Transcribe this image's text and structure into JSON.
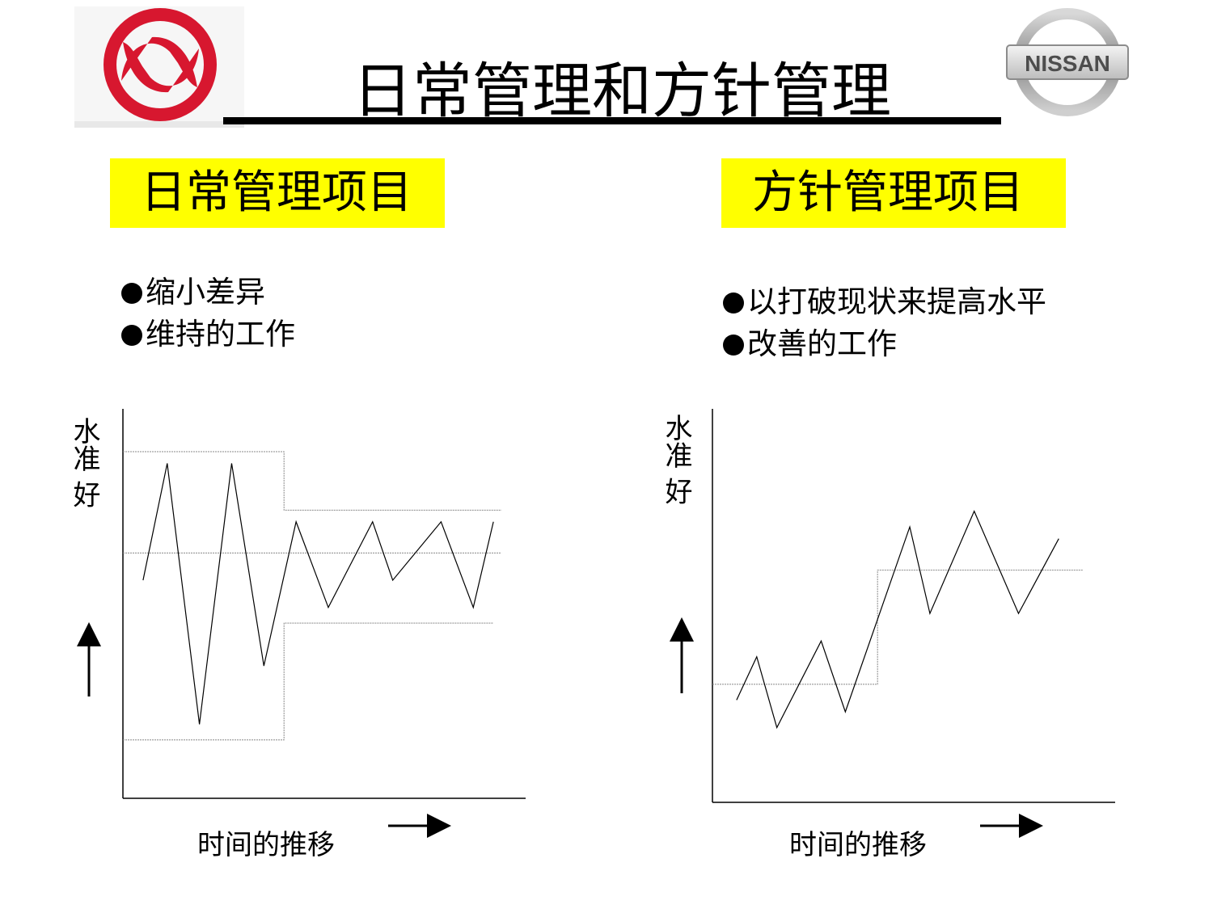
{
  "slide": {
    "title": "日常管理和方针管理",
    "left_heading": "日常管理项目",
    "right_heading": "方针管理项目",
    "left_bullets": [
      "缩小差异",
      "维持的工作"
    ],
    "right_bullets": [
      "以打破现状来提高水平",
      "改善的工作"
    ]
  },
  "logos": {
    "right_text": "NISSAN",
    "left_color": "#d7172f"
  },
  "colors": {
    "highlight": "#ffff00",
    "line": "#000000",
    "guide": "#888888"
  },
  "chart_data": [
    {
      "type": "line",
      "ylabel": "水准 好",
      "xlabel": "时间的推移",
      "xlim": [
        0,
        1
      ],
      "ylim": [
        0,
        1
      ],
      "series": [
        {
          "values": [
            [
              0.05,
              0.56
            ],
            [
              0.11,
              0.86
            ],
            [
              0.19,
              0.19
            ],
            [
              0.27,
              0.86
            ],
            [
              0.35,
              0.34
            ],
            [
              0.43,
              0.71
            ],
            [
              0.51,
              0.49
            ],
            [
              0.62,
              0.71
            ],
            [
              0.67,
              0.56
            ],
            [
              0.79,
              0.71
            ],
            [
              0.87,
              0.49
            ],
            [
              0.92,
              0.71
            ]
          ]
        }
      ],
      "guides": {
        "upper_steps": [
          [
            0.0,
            0.89
          ],
          [
            0.4,
            0.89
          ],
          [
            0.4,
            0.74
          ],
          [
            0.94,
            0.74
          ]
        ],
        "lower_steps": [
          [
            0.0,
            0.15
          ],
          [
            0.4,
            0.15
          ],
          [
            0.4,
            0.45
          ],
          [
            0.92,
            0.45
          ]
        ],
        "center": [
          [
            0.0,
            0.63
          ],
          [
            0.94,
            0.63
          ]
        ]
      }
    },
    {
      "type": "line",
      "ylabel": "水准 好",
      "xlabel": "时间的推移",
      "xlim": [
        0,
        1
      ],
      "ylim": [
        0,
        1
      ],
      "series": [
        {
          "values": [
            [
              0.06,
              0.26
            ],
            [
              0.11,
              0.37
            ],
            [
              0.16,
              0.19
            ],
            [
              0.27,
              0.41
            ],
            [
              0.33,
              0.23
            ],
            [
              0.49,
              0.7
            ],
            [
              0.54,
              0.48
            ],
            [
              0.65,
              0.74
            ],
            [
              0.76,
              0.48
            ],
            [
              0.86,
              0.67
            ]
          ]
        }
      ],
      "guides": {
        "steps": [
          [
            0.0,
            0.3
          ],
          [
            0.41,
            0.3
          ],
          [
            0.41,
            0.59
          ],
          [
            0.92,
            0.59
          ]
        ]
      }
    }
  ]
}
